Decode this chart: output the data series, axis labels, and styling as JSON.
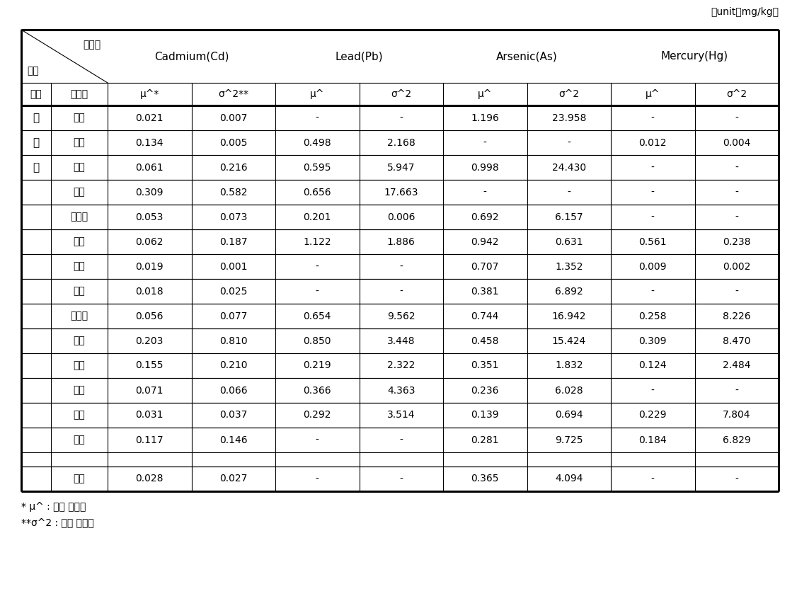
{
  "unit_label": "（unit：mg/kg）",
  "col_groups": [
    "Cadmium(Cd)",
    "Lead(Pb)",
    "Arsenic(As)",
    "Mercury(Hg)"
  ],
  "sub_cols": [
    "μ^*",
    "σ^2**",
    "μ^",
    "σ^2",
    "μ^",
    "σ^2",
    "μ^",
    "σ^2"
  ],
  "rows": [
    [
      "한",
      "감수",
      "0.021",
      "0.007",
      "-",
      "-",
      "1.196",
      "23.958",
      "-",
      "-"
    ],
    [
      "약",
      "건강",
      "0.134",
      "0.005",
      "0.498",
      "2.168",
      "-",
      "-",
      "0.012",
      "0.004"
    ],
    [
      "재",
      "계피",
      "0.061",
      "0.216",
      "0.595",
      "5.947",
      "0.998",
      "24.430",
      "-",
      "-"
    ],
    [
      "",
      "당귀",
      "0.309",
      "0.582",
      "0.656",
      "17.663",
      "-",
      "-",
      "-",
      "-"
    ],
    [
      "",
      "백작약",
      "0.053",
      "0.073",
      "0.201",
      "0.006",
      "0.692",
      "6.157",
      "-",
      "-"
    ],
    [
      "",
      "백출",
      "0.062",
      "0.187",
      "1.122",
      "1.886",
      "0.942",
      "0.631",
      "0.561",
      "0.238"
    ],
    [
      "",
      "산약",
      "0.019",
      "0.001",
      "-",
      "-",
      "0.707",
      "1.352",
      "0.009",
      "0.002"
    ],
    [
      "",
      "삼릉",
      "0.018",
      "0.025",
      "-",
      "-",
      "0.381",
      "6.892",
      "-",
      "-"
    ],
    [
      "",
      "숙지황",
      "0.056",
      "0.077",
      "0.654",
      "9.562",
      "0.744",
      "16.942",
      "0.258",
      "8.226"
    ],
    [
      "",
      "육계",
      "0.203",
      "0.810",
      "0.850",
      "3.448",
      "0.458",
      "15.424",
      "0.309",
      "8.470"
    ],
    [
      "",
      "천궁",
      "0.155",
      "0.210",
      "0.219",
      "2.322",
      "0.351",
      "1.832",
      "0.124",
      "2.484"
    ],
    [
      "",
      "황기",
      "0.071",
      "0.066",
      "0.366",
      "4.363",
      "0.236",
      "6.028",
      "-",
      "-"
    ],
    [
      "",
      "감초",
      "0.031",
      "0.037",
      "0.292",
      "3.514",
      "0.139",
      "0.694",
      "0.229",
      "7.804"
    ],
    [
      "",
      "작약",
      "0.117",
      "0.146",
      "-",
      "-",
      "0.281",
      "9.725",
      "0.184",
      "6.829"
    ],
    [
      "",
      "",
      "",
      "",
      "",
      "",
      "",
      "",
      "",
      ""
    ],
    [
      "",
      "행인",
      "0.028",
      "0.027",
      "-",
      "-",
      "0.365",
      "4.094",
      "-",
      "-"
    ]
  ],
  "footnote1": "* μ^ : 평균 추정값",
  "footnote2": "**σ^2 : 분산 추정값",
  "bg_color": "#ffffff",
  "line_color": "#000000",
  "text_color": "#000000"
}
